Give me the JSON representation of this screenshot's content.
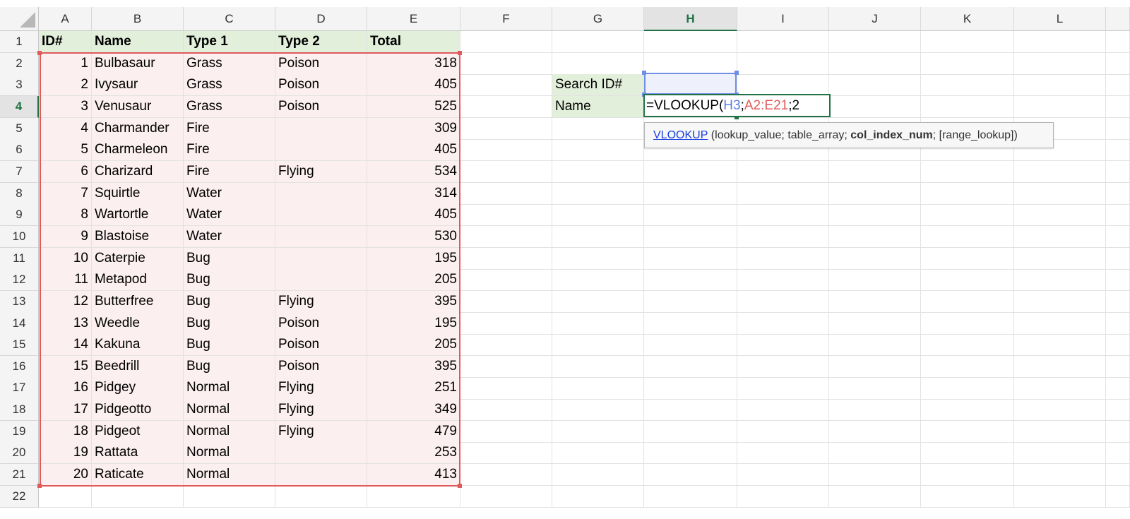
{
  "columns": [
    "A",
    "B",
    "C",
    "D",
    "E",
    "F",
    "G",
    "H",
    "I",
    "J",
    "K",
    "L"
  ],
  "selected_column": "H",
  "selected_row": 4,
  "row_count": 22,
  "table": {
    "headers": [
      "ID#",
      "Name",
      "Type 1",
      "Type 2",
      "Total"
    ],
    "rows": [
      [
        1,
        "Bulbasaur",
        "Grass",
        "Poison",
        318
      ],
      [
        2,
        "Ivysaur",
        "Grass",
        "Poison",
        405
      ],
      [
        3,
        "Venusaur",
        "Grass",
        "Poison",
        525
      ],
      [
        4,
        "Charmander",
        "Fire",
        "",
        309
      ],
      [
        5,
        "Charmeleon",
        "Fire",
        "",
        405
      ],
      [
        6,
        "Charizard",
        "Fire",
        "Flying",
        534
      ],
      [
        7,
        "Squirtle",
        "Water",
        "",
        314
      ],
      [
        8,
        "Wartortle",
        "Water",
        "",
        405
      ],
      [
        9,
        "Blastoise",
        "Water",
        "",
        530
      ],
      [
        10,
        "Caterpie",
        "Bug",
        "",
        195
      ],
      [
        11,
        "Metapod",
        "Bug",
        "",
        205
      ],
      [
        12,
        "Butterfree",
        "Bug",
        "Flying",
        395
      ],
      [
        13,
        "Weedle",
        "Bug",
        "Poison",
        195
      ],
      [
        14,
        "Kakuna",
        "Bug",
        "Poison",
        205
      ],
      [
        15,
        "Beedrill",
        "Bug",
        "Poison",
        395
      ],
      [
        16,
        "Pidgey",
        "Normal",
        "Flying",
        251
      ],
      [
        17,
        "Pidgeotto",
        "Normal",
        "Flying",
        349
      ],
      [
        18,
        "Pidgeot",
        "Normal",
        "Flying",
        479
      ],
      [
        19,
        "Rattata",
        "Normal",
        "",
        253
      ],
      [
        20,
        "Raticate",
        "Normal",
        "",
        413
      ]
    ]
  },
  "lookup": {
    "search_label": "Search ID#",
    "name_label": "Name",
    "search_value": "",
    "formula": {
      "prefix": "=VLOOKUP(",
      "ref1": "H3",
      "sep1": ";",
      "ref2": "A2:E21",
      "sep2": ";",
      "rest": "2"
    }
  },
  "tooltip": {
    "fn": "VLOOKUP",
    "open": " (lookup_value; table_array; ",
    "bold": "col_index_num",
    "close": "; [range_lookup])"
  },
  "colors": {
    "ref1": "#5b7fe0",
    "ref2": "#e05a5a",
    "active": "#217346",
    "header_fill": "#e2efda",
    "range_fill": "#fcefef"
  }
}
